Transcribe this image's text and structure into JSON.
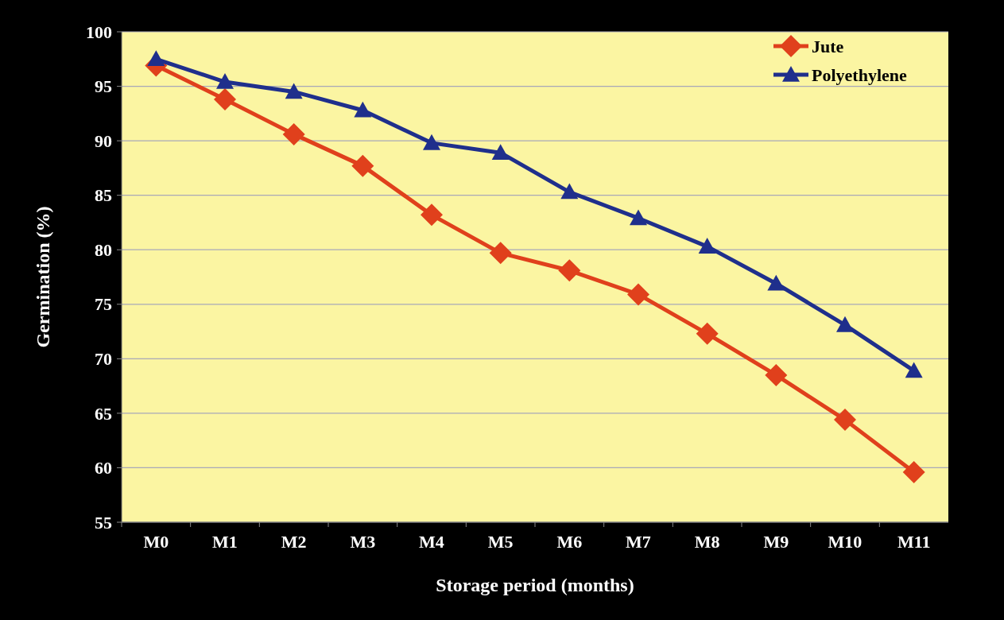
{
  "chart_data": {
    "type": "line",
    "xlabel": "Storage period (months)",
    "ylabel": "Germination (%)",
    "categories": [
      "M0",
      "M1",
      "M2",
      "M3",
      "M4",
      "M5",
      "M6",
      "M7",
      "M8",
      "M9",
      "M10",
      "M11"
    ],
    "series": [
      {
        "name": "Jute",
        "color": "#e0401c",
        "marker": "diamond",
        "values": [
          96.9,
          93.8,
          90.6,
          87.7,
          83.2,
          79.7,
          78.1,
          75.9,
          72.3,
          68.5,
          64.4,
          59.6
        ]
      },
      {
        "name": "Polyethylene",
        "color": "#1f2f8c",
        "marker": "triangle",
        "values": [
          97.5,
          95.4,
          94.5,
          92.8,
          89.8,
          88.9,
          85.3,
          82.9,
          80.3,
          76.9,
          73.1,
          68.9
        ]
      }
    ],
    "ylim": [
      55,
      100
    ],
    "yticks": [
      55,
      60,
      65,
      70,
      75,
      80,
      85,
      90,
      95,
      100
    ],
    "grid": "y",
    "legend": "top right",
    "line_style": "solid"
  }
}
